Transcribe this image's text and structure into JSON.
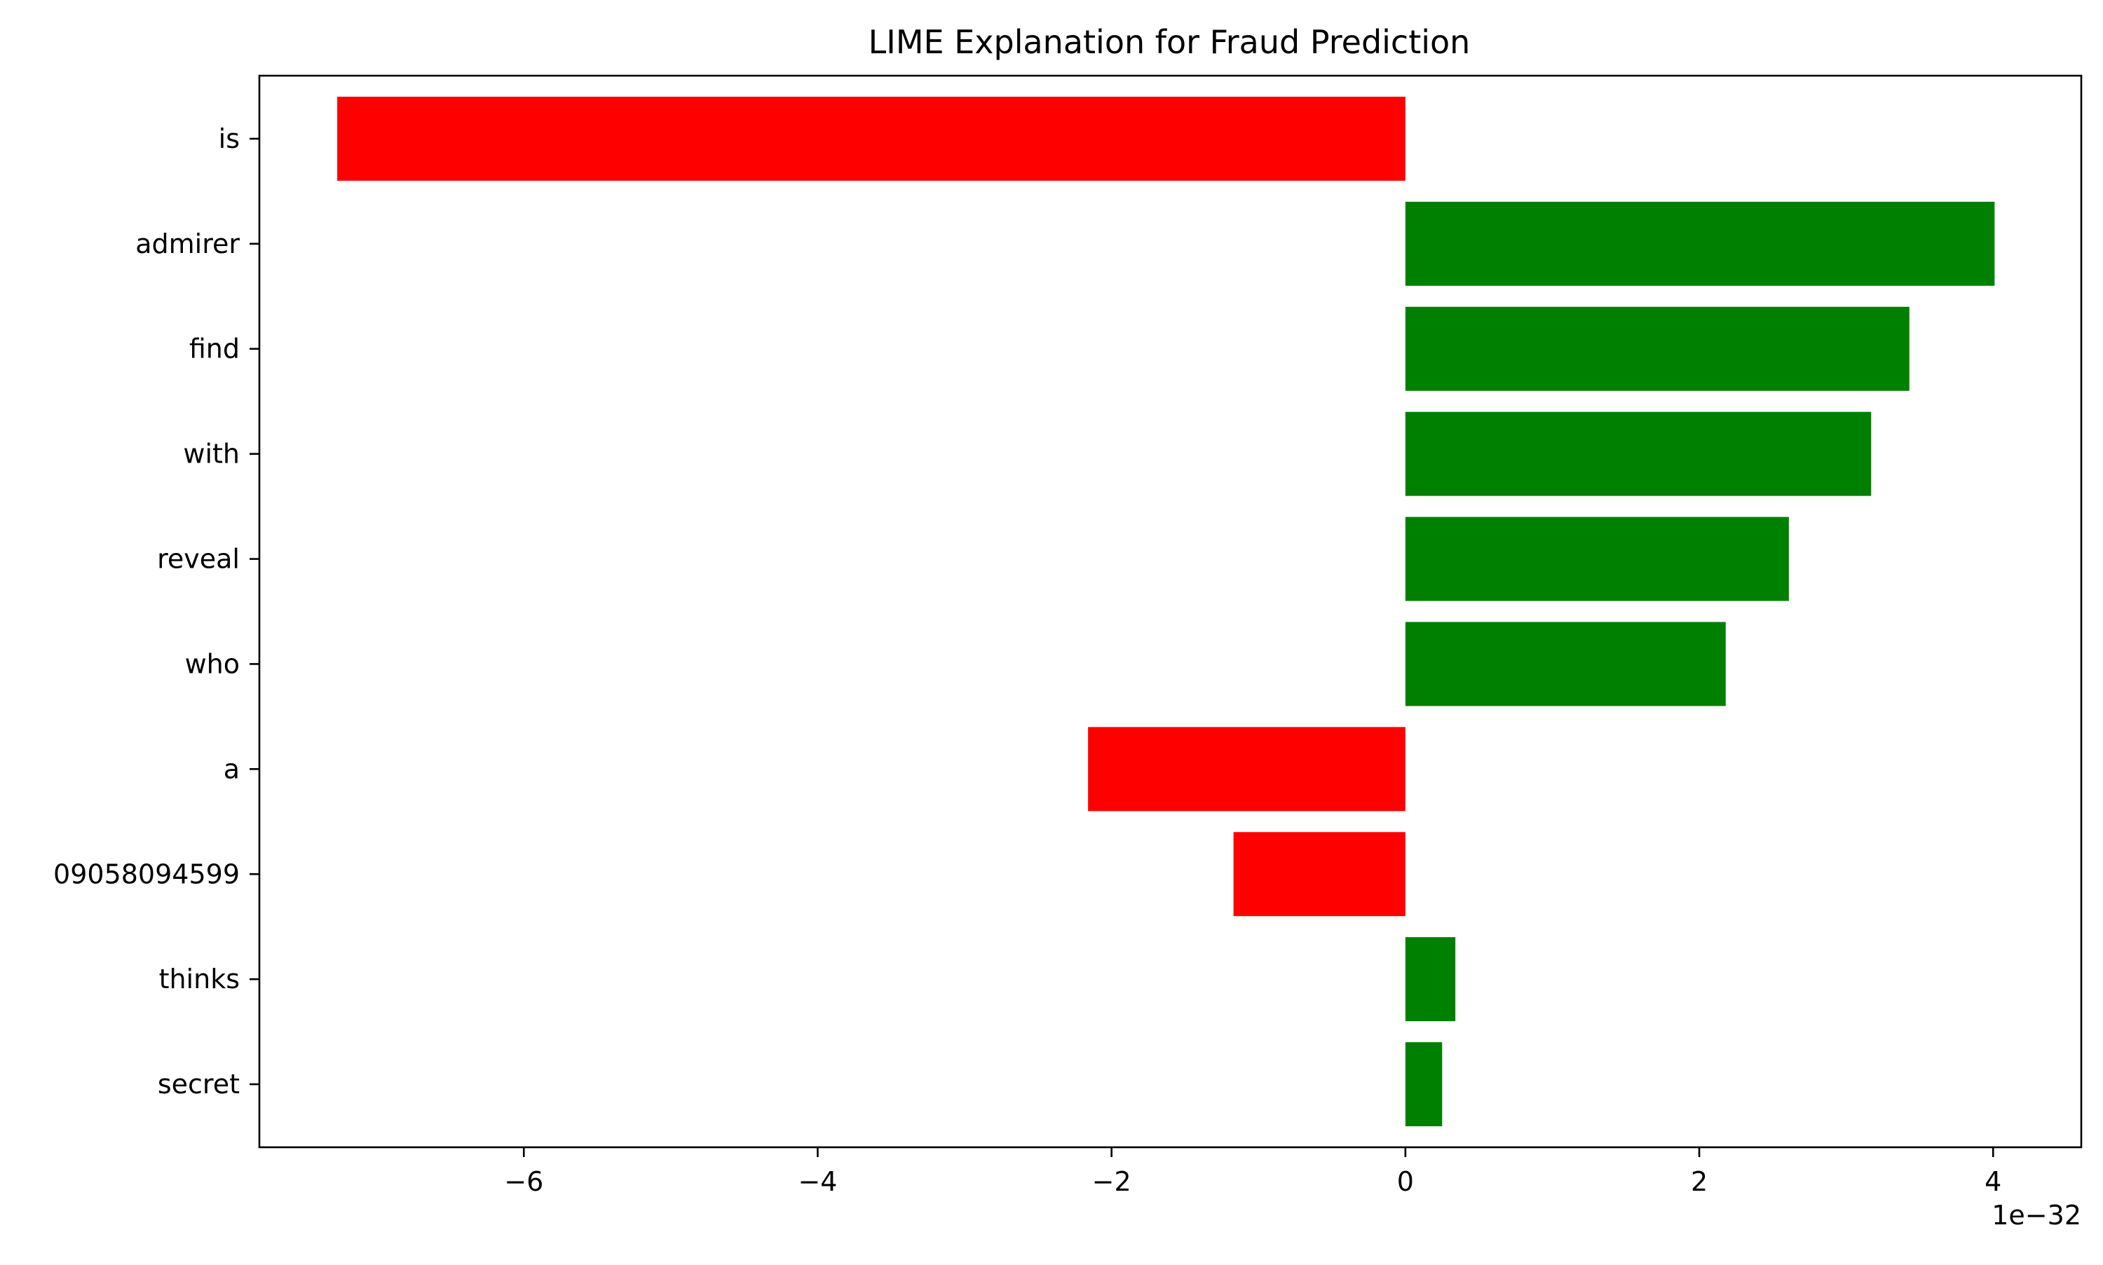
{
  "chart_data": {
    "type": "bar",
    "orientation": "horizontal",
    "title": "LIME Explanation for Fraud Prediction",
    "xlabel": "",
    "ylabel": "",
    "offset_label": "1e−32",
    "xlim": [
      -7.8,
      4.6
    ],
    "xticks": [
      -6,
      -4,
      -2,
      0,
      2,
      4
    ],
    "xtick_labels": [
      "−6",
      "−4",
      "−2",
      "0",
      "2",
      "4"
    ],
    "grid": false,
    "legend": "none",
    "categories": [
      "is",
      "admirer",
      "find",
      "with",
      "reveal",
      "who",
      "a",
      "09058094599",
      "thinks",
      "secret"
    ],
    "values": [
      -7.27,
      4.01,
      3.43,
      3.17,
      2.61,
      2.18,
      -2.16,
      -1.17,
      0.34,
      0.25
    ],
    "value_scale": "1e-32",
    "colors": {
      "positive": "#008000",
      "negative": "#ff0000"
    }
  }
}
